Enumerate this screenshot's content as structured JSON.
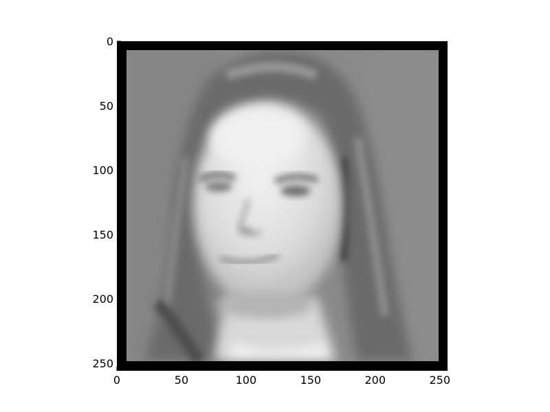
{
  "image": {
    "description_icon": "portrait-icon",
    "colormap": "gray",
    "frame_color": "#000000",
    "background_gray": "#8a8a8a"
  },
  "axes": {
    "x_ticks": [
      "0",
      "50",
      "100",
      "150",
      "200",
      "250"
    ],
    "y_ticks": [
      "0",
      "50",
      "100",
      "150",
      "200",
      "250"
    ],
    "x_range": [
      0,
      256
    ],
    "y_range": [
      0,
      256
    ]
  }
}
